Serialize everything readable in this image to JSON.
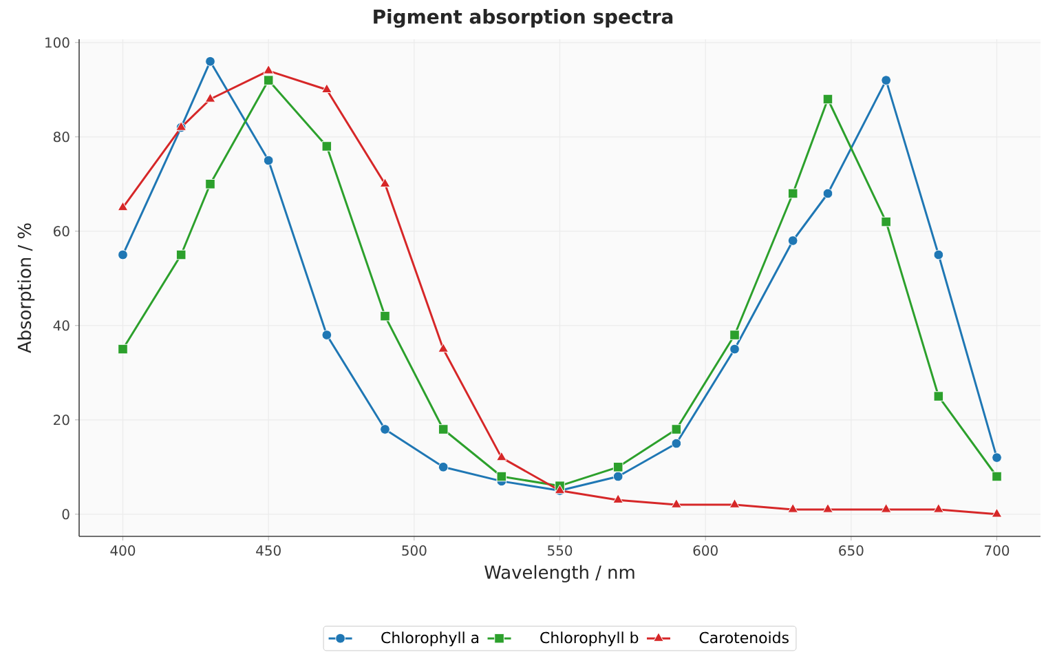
{
  "chart_data": {
    "type": "line",
    "title": "Pigment absorption spectra",
    "xlabel": "Wavelength / nm",
    "ylabel": "Absorption / %",
    "x": [
      400,
      420,
      430,
      450,
      470,
      490,
      510,
      530,
      550,
      570,
      590,
      610,
      630,
      642,
      662,
      680,
      700
    ],
    "series": [
      {
        "name": "Chlorophyll a",
        "color": "#1f77b4",
        "marker": "circle",
        "values": [
          55,
          82,
          96,
          75,
          38,
          18,
          10,
          7,
          5,
          8,
          15,
          35,
          58,
          68,
          92,
          55,
          12
        ]
      },
      {
        "name": "Chlorophyll b",
        "color": "#2ca02c",
        "marker": "square",
        "values": [
          35,
          55,
          70,
          92,
          78,
          42,
          18,
          8,
          6,
          10,
          18,
          38,
          68,
          88,
          62,
          25,
          8
        ]
      },
      {
        "name": "Carotenoids",
        "color": "#d62728",
        "marker": "triangle",
        "values": [
          65,
          82,
          88,
          94,
          90,
          70,
          35,
          12,
          5,
          3,
          2,
          2,
          1,
          1,
          1,
          1,
          0
        ]
      }
    ],
    "xlim": [
      385,
      715
    ],
    "ylim": [
      -4.7,
      100.7
    ],
    "xticks": [
      400,
      450,
      500,
      550,
      600,
      650,
      700
    ],
    "yticks": [
      0,
      20,
      40,
      60,
      80,
      100
    ],
    "grid": true,
    "legend": "bottom"
  }
}
